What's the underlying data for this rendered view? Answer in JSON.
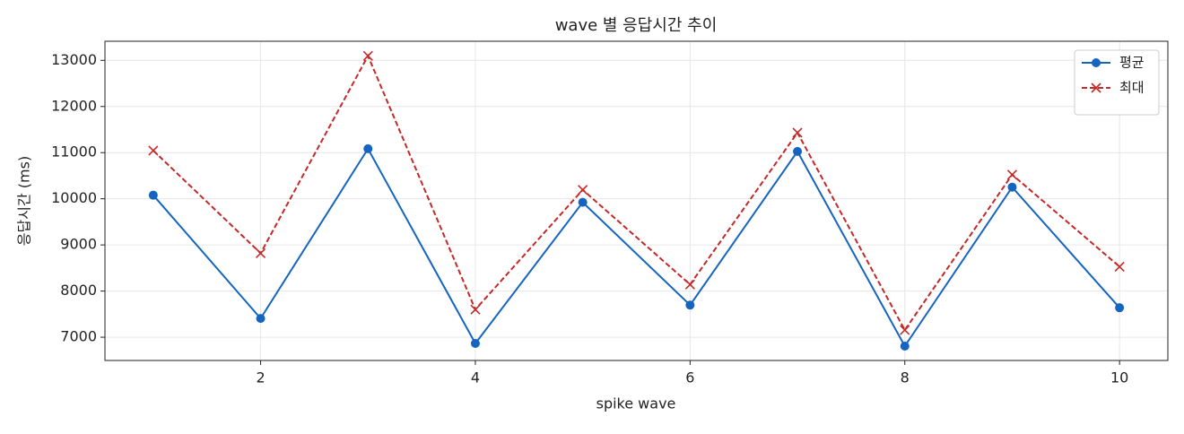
{
  "chart_data": {
    "type": "line",
    "title": "wave 별 응답시간 추이",
    "x_label": "spike wave",
    "y_label": "응답시간 (ms)",
    "x": [
      1,
      2,
      3,
      4,
      5,
      6,
      7,
      8,
      9,
      10
    ],
    "series": [
      {
        "name": "평균",
        "color": "#1565c0",
        "linestyle": "solid",
        "marker": "o",
        "values": [
          10078,
          7407,
          11084,
          6865,
          9923,
          7697,
          11026,
          6807,
          10252,
          7639
        ]
      },
      {
        "name": "최대",
        "color": "#c62828",
        "linestyle": "dashed",
        "marker": "x",
        "values": [
          11045,
          8820,
          13097,
          7600,
          10194,
          8142,
          11432,
          7155,
          10523,
          8529
        ]
      }
    ],
    "xlim": [
      0.55,
      10.45
    ],
    "xticks": [
      2,
      4,
      6,
      8,
      10
    ],
    "ylim": [
      6496,
      13414
    ],
    "yticks": [
      7000,
      8000,
      9000,
      10000,
      11000,
      12000,
      13000
    ],
    "grid": true,
    "legend": "upper right"
  }
}
